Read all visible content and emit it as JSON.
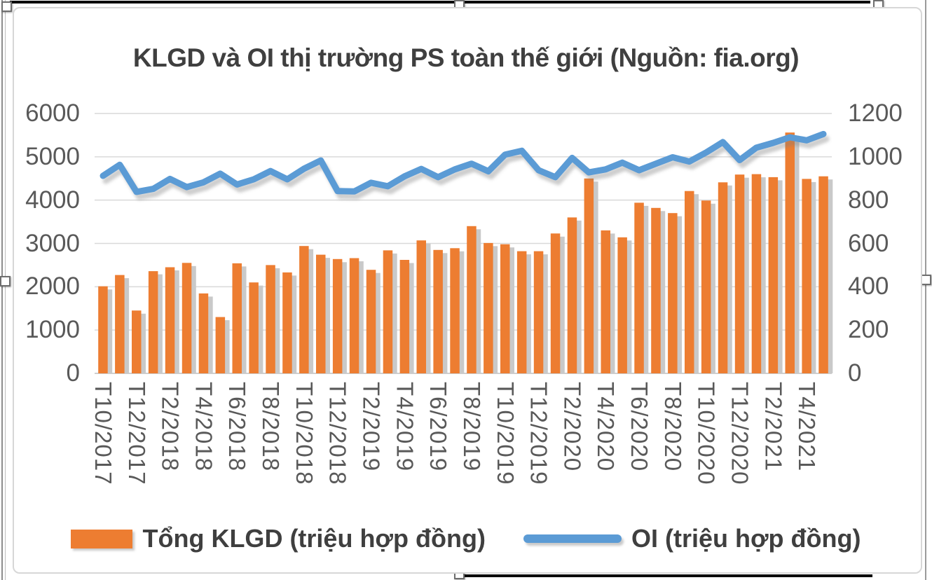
{
  "chart_data": {
    "type": "combo-bar-line",
    "title": "KLGD và OI thị trường PS toàn thế giới (Nguồn: fia.org)",
    "x_tick_labels": [
      "T10/2017",
      "T12/2017",
      "T2/2018",
      "T4/2018",
      "T6/2018",
      "T8/2018",
      "T10/2018",
      "T12/2018",
      "T2/2019",
      "T4/2019",
      "T6/2019",
      "T8/2019",
      "T10/2019",
      "T12/2019",
      "T2/2020",
      "T4/2020",
      "T6/2020",
      "T8/2020",
      "T10/2020",
      "T12/2020",
      "T2/2021",
      "T4/2021"
    ],
    "x_label_every_n_bars": 2,
    "left_axis": {
      "min": 0,
      "max": 6000,
      "step": 1000,
      "tick_labels": [
        "0",
        "1000",
        "2000",
        "3000",
        "4000",
        "5000",
        "6000"
      ]
    },
    "right_axis": {
      "min": 0,
      "max": 1200,
      "step": 200,
      "tick_labels": [
        "0",
        "200",
        "400",
        "600",
        "800",
        "1000",
        "1200"
      ]
    },
    "grid": "horizontal",
    "legend_position": "bottom",
    "series": [
      {
        "name": "Tổng KLGD (triệu hợp đồng)",
        "type": "bar",
        "axis": "left",
        "color": "#ED7D31",
        "values": [
          2010,
          2270,
          1450,
          2360,
          2450,
          2550,
          1845,
          1300,
          2540,
          2100,
          2500,
          2330,
          2940,
          2740,
          2640,
          2660,
          2390,
          2840,
          2620,
          3070,
          2850,
          2890,
          3400,
          3010,
          2980,
          2820,
          2820,
          3230,
          3600,
          4500,
          3300,
          3140,
          3940,
          3820,
          3700,
          4210,
          3990,
          4410,
          4590,
          4600,
          4530,
          5560,
          4490,
          4550
        ]
      },
      {
        "name": "OI (triệu hợp đồng)",
        "type": "line",
        "axis": "right",
        "color": "#5B9BD5",
        "values": [
          912,
          963,
          838,
          852,
          898,
          860,
          882,
          922,
          872,
          896,
          934,
          896,
          945,
          983,
          842,
          840,
          880,
          864,
          910,
          944,
          906,
          942,
          968,
          933,
          1010,
          1028,
          938,
          906,
          995,
          928,
          942,
          973,
          938,
          968,
          998,
          978,
          1020,
          1068,
          985,
          1042,
          1064,
          1090,
          1076,
          1105
        ]
      }
    ]
  }
}
